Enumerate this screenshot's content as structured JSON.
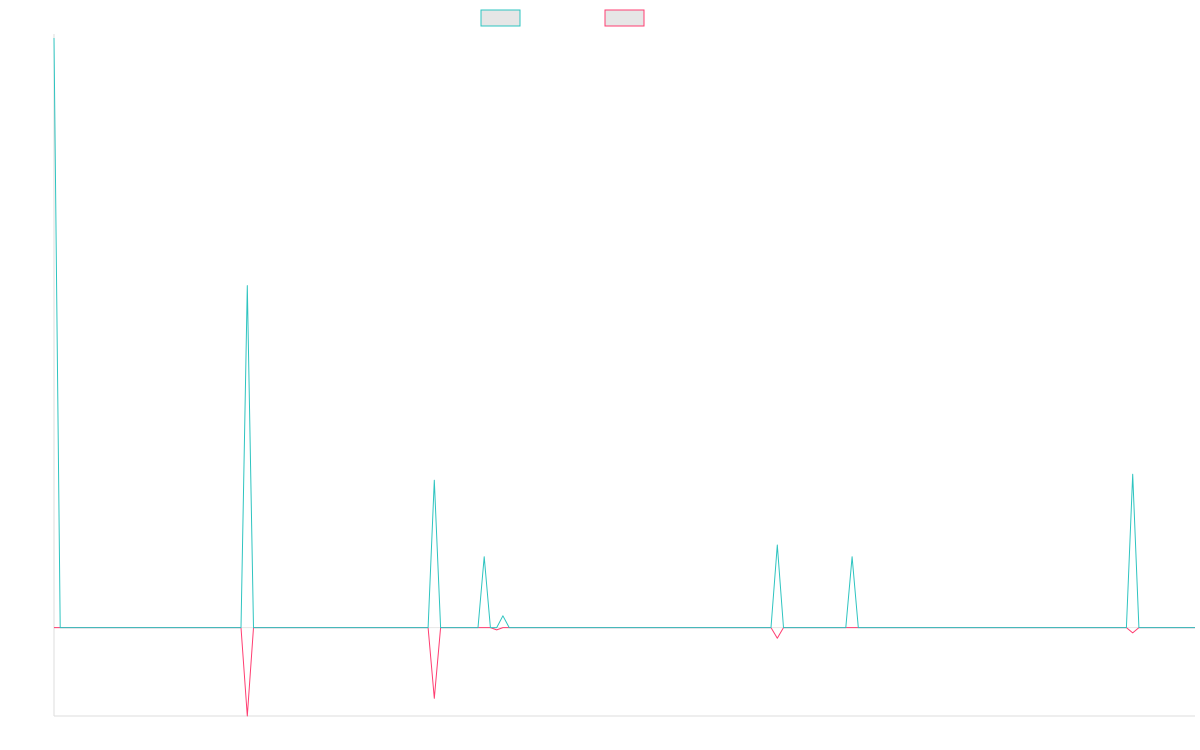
{
  "chart_data": {
    "type": "line",
    "title": "",
    "xlabel": "",
    "ylabel": "",
    "grid": false,
    "legend_position": "top-center",
    "x": [
      0,
      1,
      30,
      31,
      32,
      60,
      61,
      62,
      64,
      68,
      69,
      70,
      71,
      72,
      73,
      115,
      116,
      117,
      127,
      128,
      129,
      172,
      173,
      174,
      183
    ],
    "ylim": [
      -15,
      100
    ],
    "series": [
      {
        "color": "#2ec4c0",
        "fill": "#e6e6e6",
        "values": [
          100,
          0,
          0,
          58,
          0,
          0,
          25,
          0,
          0,
          0,
          12,
          0,
          0,
          2,
          0,
          0,
          14,
          0,
          0,
          12,
          0,
          0,
          26,
          0,
          0
        ]
      },
      {
        "color": "#ff3d71",
        "fill": "#e6e6e6",
        "values": [
          0,
          0,
          0,
          -15,
          0,
          0,
          -12,
          0,
          0,
          0,
          0,
          0,
          -0.4,
          0,
          0,
          0,
          -1.8,
          0,
          0,
          0,
          0,
          0,
          -0.9,
          0,
          0
        ]
      }
    ]
  }
}
